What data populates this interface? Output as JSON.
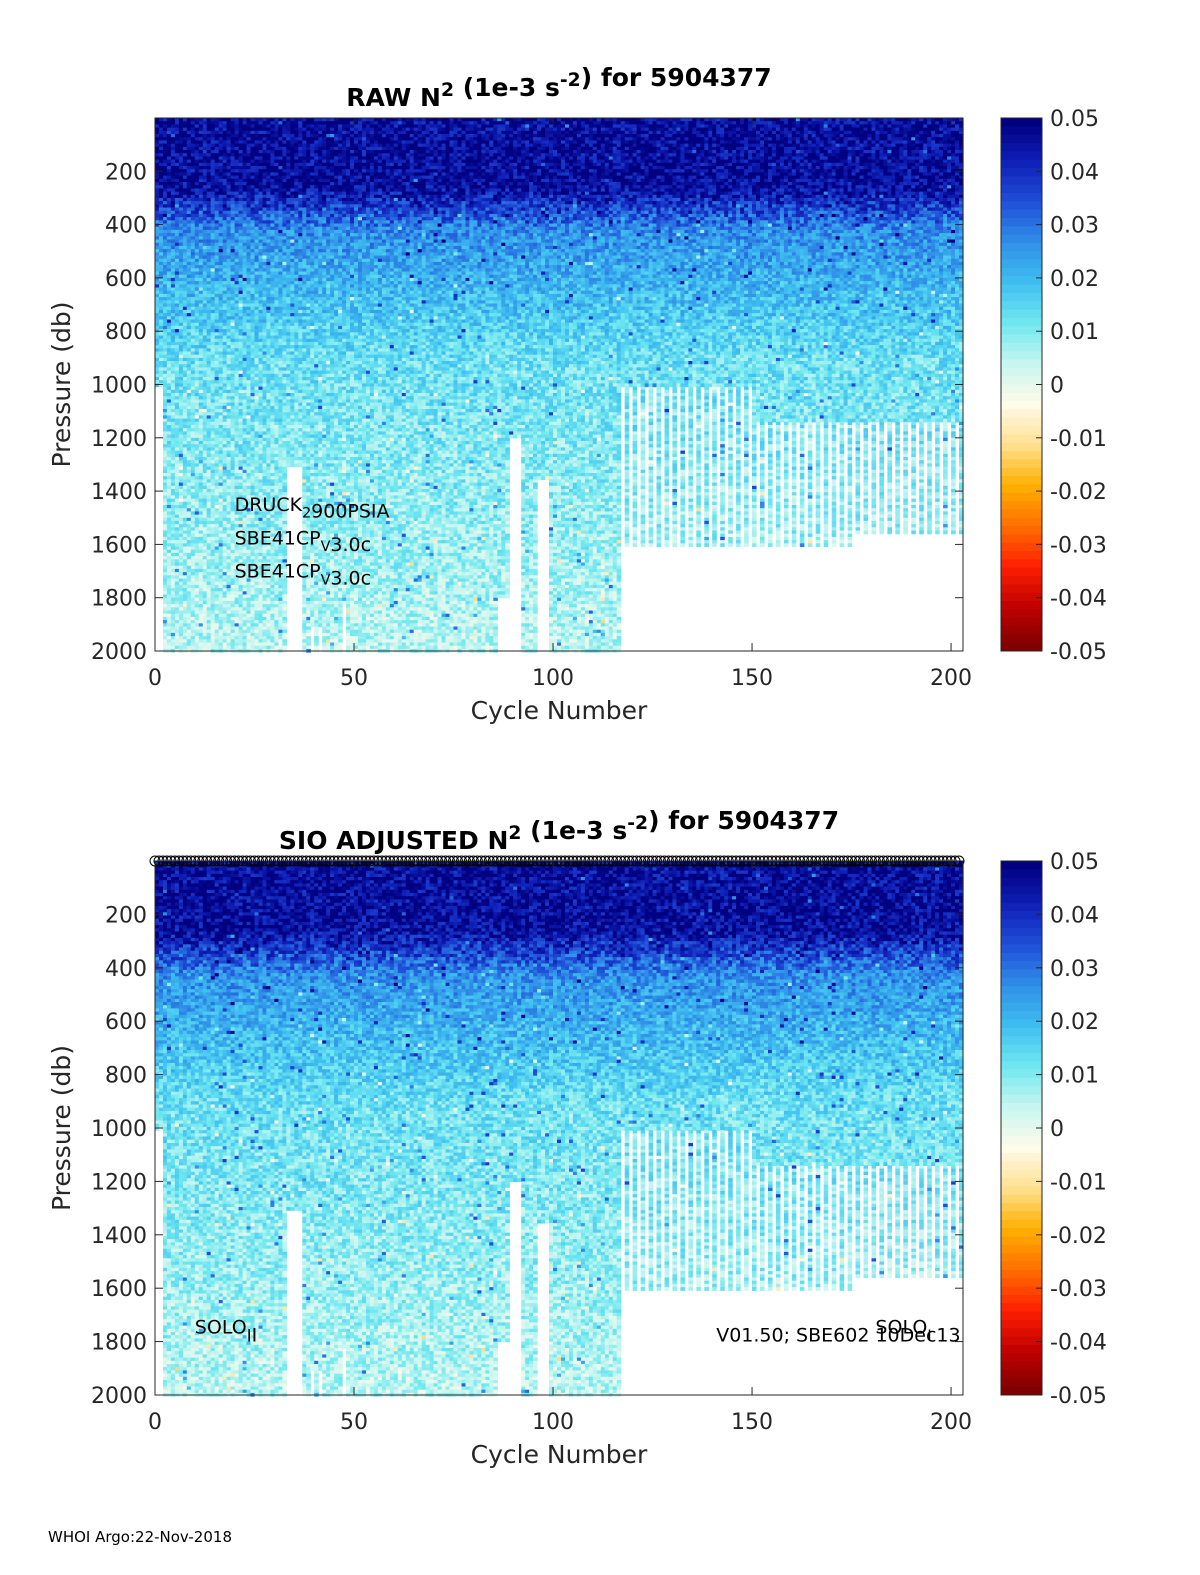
{
  "footer": "WHOI Argo:22-Nov-2018",
  "colors": {
    "colormap": [
      "#800000",
      "#c00000",
      "#ff2000",
      "#ff7000",
      "#ffb000",
      "#ffe090",
      "#fffbea",
      "#c8f6f0",
      "#70e8f0",
      "#40c0f0",
      "#3090e8",
      "#2050d8",
      "#1020b8",
      "#000080"
    ]
  },
  "chart_data": [
    {
      "type": "heatmap",
      "title": {
        "main": "RAW N",
        "sup1": "2",
        "mid": " (1e-3 s",
        "sup2": "-2",
        "end": ") for 5904377"
      },
      "xlabel": "Cycle Number",
      "ylabel": "Pressure (db)",
      "xlim": [
        0,
        203
      ],
      "ylim": [
        0,
        2000
      ],
      "y_reversed": true,
      "xticks": [
        "0",
        "50",
        "100",
        "150",
        "200"
      ],
      "xtick_values": [
        0,
        50,
        100,
        150,
        200
      ],
      "yticks": [
        "200",
        "400",
        "600",
        "800",
        "1000",
        "1200",
        "1400",
        "1600",
        "1800",
        "2000"
      ],
      "ytick_values": [
        200,
        400,
        600,
        800,
        1000,
        1200,
        1400,
        1600,
        1800,
        2000
      ],
      "colorbar": {
        "ticks": [
          "0.05",
          "0.04",
          "0.03",
          "0.02",
          "0.01",
          "0",
          "-0.01",
          "-0.02",
          "-0.03",
          "-0.04",
          "-0.05"
        ],
        "range": [
          -0.05,
          0.05
        ]
      },
      "annotations": [
        {
          "parts": [
            {
              "t": "DRUCK"
            },
            {
              "t": "2",
              "sub": true
            },
            {
              "t": "900PSIA"
            }
          ],
          "x": 20,
          "y": 1475
        },
        {
          "parts": [
            {
              "t": "SBE41CP"
            },
            {
              "t": "V",
              "sub": true
            },
            {
              "t": "3.0c"
            }
          ],
          "x": 20,
          "y": 1600
        },
        {
          "parts": [
            {
              "t": "SBE41CP"
            },
            {
              "t": "V",
              "sub": true
            },
            {
              "t": "3.0c"
            }
          ],
          "x": 20,
          "y": 1725
        }
      ],
      "top_markers": false
    },
    {
      "type": "heatmap",
      "title": {
        "main": "SIO  ADJUSTED N",
        "sup1": "2",
        "mid": " (1e-3 s",
        "sup2": "-2",
        "end": ") for 5904377"
      },
      "xlabel": "Cycle Number",
      "ylabel": "Pressure (db)",
      "xlim": [
        0,
        203
      ],
      "ylim": [
        0,
        2000
      ],
      "y_reversed": true,
      "xticks": [
        "0",
        "50",
        "100",
        "150",
        "200"
      ],
      "xtick_values": [
        0,
        50,
        100,
        150,
        200
      ],
      "yticks": [
        "200",
        "400",
        "600",
        "800",
        "1000",
        "1200",
        "1400",
        "1600",
        "1800",
        "2000"
      ],
      "ytick_values": [
        200,
        400,
        600,
        800,
        1000,
        1200,
        1400,
        1600,
        1800,
        2000
      ],
      "colorbar": {
        "ticks": [
          "0.05",
          "0.04",
          "0.03",
          "0.02",
          "0.01",
          "0",
          "-0.01",
          "-0.02",
          "-0.03",
          "-0.04",
          "-0.05"
        ],
        "range": [
          -0.05,
          0.05
        ]
      },
      "annotations": [
        {
          "parts": [
            {
              "t": "SOLO"
            },
            {
              "t": "I",
              "sub": true
            },
            {
              "t": "I"
            }
          ],
          "x": 10,
          "y": 1770,
          "size": 22
        },
        {
          "parts": [
            {
              "t": "SOLO"
            },
            {
              "t": "I",
              "sub": true
            }
          ],
          "x": 181,
          "y": 1770,
          "size": 19
        },
        {
          "parts": [
            {
              "t": "V01.50; SBE602 10Dec13"
            }
          ],
          "x": 141,
          "y": 1800,
          "size": 19
        }
      ],
      "top_markers": true
    }
  ]
}
